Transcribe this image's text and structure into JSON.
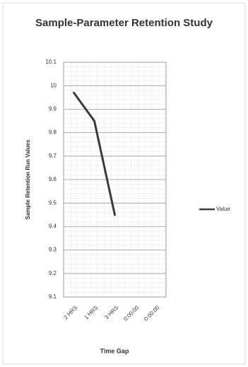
{
  "chart_data": {
    "type": "line",
    "title": "Sample-Parameter Retention Study",
    "y_label": "Sample Retention Run Values",
    "x_label": "Time Gap",
    "categories": [
      "2 HRS",
      "1 HRS",
      "3 HRS",
      "0:00:00",
      "0:00:00"
    ],
    "series": [
      {
        "name": "Value",
        "color": "#3a3a3a",
        "values": [
          9.97,
          9.85,
          9.45,
          null,
          null
        ]
      }
    ],
    "ylim": [
      9.1,
      10.1
    ],
    "yticks": [
      9.1,
      9.2,
      9.3,
      9.4,
      9.5,
      9.6,
      9.7,
      9.8,
      9.9,
      10,
      10.1
    ],
    "grid": true,
    "legend": "right"
  }
}
